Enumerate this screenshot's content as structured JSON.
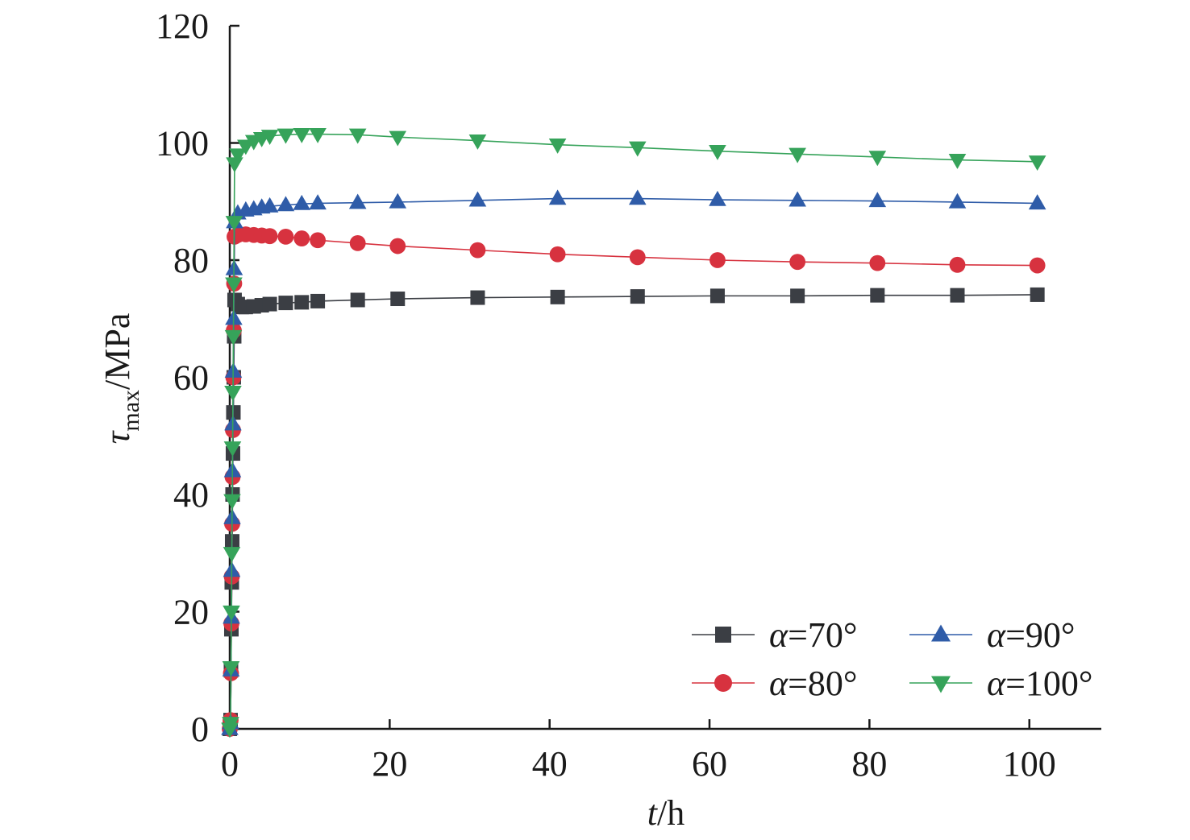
{
  "chart_data": {
    "type": "line",
    "xlabel_var": "t",
    "xlabel_unit": "/h",
    "ylabel_var": "τ",
    "ylabel_sub": "max",
    "ylabel_unit": "/MPa",
    "xlim": [
      0,
      109
    ],
    "ylim": [
      0,
      120
    ],
    "xticks": [
      0,
      20,
      40,
      60,
      80,
      100
    ],
    "yticks": [
      0,
      20,
      40,
      60,
      80,
      100,
      120
    ],
    "grid": false,
    "legend_position": "bottom-right",
    "series": [
      {
        "name": "α=70°",
        "legend_var": "α",
        "legend_value": "=70°",
        "color": "#3b3e44",
        "marker": "square",
        "points": [
          [
            0,
            0
          ],
          [
            0.1,
            1.5
          ],
          [
            0.15,
            10
          ],
          [
            0.2,
            17
          ],
          [
            0.25,
            25
          ],
          [
            0.3,
            32
          ],
          [
            0.35,
            40
          ],
          [
            0.4,
            47
          ],
          [
            0.45,
            54
          ],
          [
            0.5,
            60
          ],
          [
            0.55,
            67
          ],
          [
            0.6,
            73.2
          ],
          [
            1,
            72.5
          ],
          [
            1.5,
            72
          ],
          [
            2,
            72
          ],
          [
            3,
            72.1
          ],
          [
            4,
            72.3
          ],
          [
            5,
            72.5
          ],
          [
            7,
            72.7
          ],
          [
            9,
            72.8
          ],
          [
            11,
            73
          ],
          [
            16,
            73.2
          ],
          [
            21,
            73.4
          ],
          [
            31,
            73.6
          ],
          [
            41,
            73.7
          ],
          [
            51,
            73.8
          ],
          [
            61,
            73.9
          ],
          [
            71,
            73.9
          ],
          [
            81,
            74
          ],
          [
            91,
            74
          ],
          [
            101,
            74.1
          ]
        ]
      },
      {
        "name": "α=80°",
        "legend_var": "α",
        "legend_value": "=80°",
        "color": "#d7323f",
        "marker": "circle",
        "points": [
          [
            0,
            0
          ],
          [
            0.1,
            1.5
          ],
          [
            0.15,
            9.5
          ],
          [
            0.2,
            18
          ],
          [
            0.25,
            26
          ],
          [
            0.3,
            35
          ],
          [
            0.35,
            43
          ],
          [
            0.4,
            51
          ],
          [
            0.45,
            60
          ],
          [
            0.5,
            68
          ],
          [
            0.55,
            76
          ],
          [
            0.6,
            84
          ],
          [
            1,
            84.3
          ],
          [
            2,
            84.4
          ],
          [
            3,
            84.3
          ],
          [
            4,
            84.2
          ],
          [
            5,
            84.1
          ],
          [
            7,
            84
          ],
          [
            9,
            83.7
          ],
          [
            11,
            83.4
          ],
          [
            16,
            82.9
          ],
          [
            21,
            82.4
          ],
          [
            31,
            81.7
          ],
          [
            41,
            81
          ],
          [
            51,
            80.5
          ],
          [
            61,
            80
          ],
          [
            71,
            79.7
          ],
          [
            81,
            79.5
          ],
          [
            91,
            79.2
          ],
          [
            101,
            79.1
          ]
        ]
      },
      {
        "name": "α=90°",
        "legend_var": "α",
        "legend_value": "=90°",
        "color": "#2f5ca8",
        "marker": "triangle-up",
        "points": [
          [
            0,
            0
          ],
          [
            0.1,
            1
          ],
          [
            0.15,
            10
          ],
          [
            0.2,
            19
          ],
          [
            0.25,
            27
          ],
          [
            0.3,
            36
          ],
          [
            0.35,
            44
          ],
          [
            0.4,
            52
          ],
          [
            0.45,
            61
          ],
          [
            0.5,
            70
          ],
          [
            0.55,
            78.5
          ],
          [
            0.6,
            86.5
          ],
          [
            1,
            88
          ],
          [
            2,
            88.5
          ],
          [
            3,
            88.7
          ],
          [
            4,
            89
          ],
          [
            5,
            89.2
          ],
          [
            7,
            89.4
          ],
          [
            9,
            89.6
          ],
          [
            11,
            89.7
          ],
          [
            16,
            89.8
          ],
          [
            21,
            89.9
          ],
          [
            31,
            90.2
          ],
          [
            41,
            90.5
          ],
          [
            51,
            90.5
          ],
          [
            61,
            90.3
          ],
          [
            71,
            90.2
          ],
          [
            81,
            90.1
          ],
          [
            91,
            89.9
          ],
          [
            101,
            89.7
          ]
        ]
      },
      {
        "name": "α=100°",
        "legend_var": "α",
        "legend_value": "=100°",
        "color": "#36a35a",
        "marker": "triangle-down",
        "points": [
          [
            0,
            0
          ],
          [
            0.1,
            1
          ],
          [
            0.15,
            10.5
          ],
          [
            0.2,
            20
          ],
          [
            0.25,
            30
          ],
          [
            0.3,
            39
          ],
          [
            0.35,
            48
          ],
          [
            0.4,
            57.5
          ],
          [
            0.45,
            67
          ],
          [
            0.5,
            76
          ],
          [
            0.55,
            86.5
          ],
          [
            0.6,
            96.5
          ],
          [
            1,
            98
          ],
          [
            2,
            99.5
          ],
          [
            3,
            100.3
          ],
          [
            4,
            100.8
          ],
          [
            5,
            101.2
          ],
          [
            7,
            101.4
          ],
          [
            9,
            101.5
          ],
          [
            11,
            101.5
          ],
          [
            16,
            101.4
          ],
          [
            21,
            101
          ],
          [
            31,
            100.4
          ],
          [
            41,
            99.7
          ],
          [
            51,
            99.2
          ],
          [
            61,
            98.6
          ],
          [
            71,
            98.1
          ],
          [
            81,
            97.6
          ],
          [
            91,
            97.1
          ],
          [
            101,
            96.8
          ]
        ]
      }
    ]
  }
}
